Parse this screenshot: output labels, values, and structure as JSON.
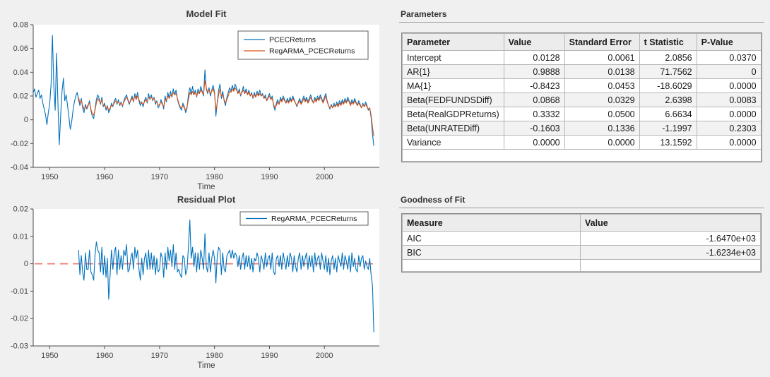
{
  "colors": {
    "background": "#f0f0f0",
    "axes_background": "#ffffff",
    "blue_series": "#0072BD",
    "orange_series": "#D95319",
    "zero_line_red": "#ef7b72",
    "axis_line": "#4a4a4a",
    "tick_text": "#424242",
    "title_text": "#3c3c3c"
  },
  "chart_data": [
    {
      "type": "line",
      "title": "Model Fit",
      "xlabel": "Time",
      "xlim": [
        1947,
        2010
      ],
      "ylim": [
        -0.04,
        0.08
      ],
      "x_tick_values": [
        1950,
        1960,
        1970,
        1980,
        1990,
        2000
      ],
      "x_tick_labels": [
        "1950",
        "1960",
        "1970",
        "1980",
        "1990",
        "2000"
      ],
      "y_tick_values": [
        -0.04,
        -0.02,
        0,
        0.02,
        0.04,
        0.06,
        0.08
      ],
      "y_tick_labels": [
        "-0.04",
        "-0.02",
        "0",
        "0.02",
        "0.04",
        "0.06",
        "0.08"
      ],
      "grid": false,
      "legend_position": "top-right",
      "legend": [
        "PCECReturns",
        "RegARMA_PCECReturns"
      ],
      "series": [
        {
          "name": "PCECReturns",
          "color": "#0072BD",
          "x_start": 1947.0,
          "x_step": 0.25,
          "values": [
            0.023,
            0.026,
            0.019,
            0.022,
            0.025,
            0.018,
            0.021,
            0.014,
            0.009,
            0.004,
            -0.004,
            0.006,
            0.013,
            0.03,
            0.071,
            0.028,
            0.008,
            0.056,
            0.014,
            -0.021,
            0.004,
            0.024,
            0.035,
            0.016,
            0.021,
            0.012,
            0.002,
            -0.008,
            -0.002,
            0.008,
            0.015,
            0.02,
            0.023,
            0.017,
            0.012,
            0.018,
            0.01,
            0.006,
            0.013,
            0.009,
            0.012,
            0.016,
            0.008,
            0.003,
            0.001,
            0.009,
            0.017,
            0.021,
            0.018,
            0.013,
            0.019,
            0.011,
            0.014,
            0.008,
            0.012,
            0.006,
            0.009,
            0.014,
            0.011,
            0.016,
            0.018,
            0.013,
            0.017,
            0.012,
            0.015,
            0.011,
            0.016,
            0.019,
            0.021,
            0.016,
            0.013,
            0.017,
            0.02,
            0.015,
            0.022,
            0.018,
            0.023,
            0.016,
            0.012,
            0.015,
            0.011,
            0.016,
            0.019,
            0.014,
            0.022,
            0.017,
            0.021,
            0.016,
            0.019,
            0.013,
            0.016,
            0.01,
            0.012,
            0.017,
            0.014,
            0.009,
            0.02,
            0.015,
            0.023,
            0.018,
            0.024,
            0.019,
            0.026,
            0.021,
            0.025,
            0.017,
            0.013,
            0.01,
            0.008,
            0.014,
            0.011,
            0.006,
            0.01,
            0.021,
            0.027,
            0.022,
            0.028,
            0.021,
            0.025,
            0.019,
            0.026,
            0.022,
            0.028,
            0.024,
            0.02,
            0.042,
            0.026,
            0.022,
            0.027,
            0.02,
            0.025,
            0.029,
            0.023,
            0.003,
            0.015,
            0.025,
            0.03,
            0.018,
            0.024,
            0.016,
            0.012,
            0.019,
            0.023,
            0.027,
            0.024,
            0.029,
            0.025,
            0.03,
            0.027,
            0.022,
            0.026,
            0.02,
            0.024,
            0.028,
            0.022,
            0.026,
            0.021,
            0.025,
            0.02,
            0.023,
            0.018,
            0.023,
            0.019,
            0.024,
            0.021,
            0.025,
            0.02,
            0.022,
            0.018,
            0.021,
            0.016,
            0.019,
            0.022,
            0.017,
            0.02,
            0.012,
            0.008,
            0.014,
            0.017,
            0.013,
            0.019,
            0.016,
            0.02,
            0.017,
            0.014,
            0.018,
            0.015,
            0.019,
            0.016,
            0.02,
            0.017,
            0.014,
            0.011,
            0.015,
            0.018,
            0.014,
            0.017,
            0.02,
            0.016,
            0.019,
            0.015,
            0.018,
            0.021,
            0.017,
            0.014,
            0.019,
            0.016,
            0.02,
            0.017,
            0.021,
            0.018,
            0.015,
            0.019,
            0.022,
            0.016,
            0.012,
            0.009,
            0.013,
            0.01,
            0.014,
            0.011,
            0.015,
            0.012,
            0.016,
            0.013,
            0.017,
            0.014,
            0.018,
            0.015,
            0.019,
            0.016,
            0.013,
            0.017,
            0.014,
            0.018,
            0.015,
            0.012,
            0.016,
            0.013,
            0.01,
            0.014,
            0.011,
            0.015,
            0.012,
            0.008,
            0.01,
            0.002,
            -0.012,
            -0.022
          ]
        },
        {
          "name": "RegARMA_PCECReturns",
          "color": "#D95319",
          "x_start": 1955.25,
          "x_step": 0.25,
          "values": [
            0.019,
            0.014,
            0.016,
            0.012,
            0.009,
            0.011,
            0.01,
            0.013,
            0.014,
            0.009,
            0.005,
            0.004,
            0.008,
            0.014,
            0.018,
            0.016,
            0.014,
            0.017,
            0.012,
            0.012,
            0.01,
            0.011,
            0.008,
            0.01,
            0.012,
            0.012,
            0.014,
            0.016,
            0.014,
            0.015,
            0.013,
            0.014,
            0.012,
            0.015,
            0.017,
            0.019,
            0.017,
            0.014,
            0.016,
            0.018,
            0.016,
            0.02,
            0.017,
            0.02,
            0.017,
            0.014,
            0.014,
            0.013,
            0.015,
            0.017,
            0.015,
            0.019,
            0.018,
            0.019,
            0.017,
            0.018,
            0.015,
            0.015,
            0.012,
            0.013,
            0.015,
            0.013,
            0.011,
            0.017,
            0.016,
            0.02,
            0.018,
            0.021,
            0.02,
            0.023,
            0.021,
            0.022,
            0.018,
            0.014,
            0.011,
            0.01,
            0.012,
            0.01,
            0.008,
            0.011,
            0.017,
            0.023,
            0.021,
            0.024,
            0.021,
            0.023,
            0.02,
            0.023,
            0.022,
            0.025,
            0.023,
            0.021,
            0.033,
            0.027,
            0.023,
            0.025,
            0.022,
            0.024,
            0.026,
            0.022,
            0.008,
            0.014,
            0.021,
            0.026,
            0.02,
            0.021,
            0.017,
            0.014,
            0.017,
            0.02,
            0.024,
            0.023,
            0.026,
            0.024,
            0.027,
            0.025,
            0.022,
            0.024,
            0.021,
            0.023,
            0.025,
            0.022,
            0.024,
            0.021,
            0.023,
            0.02,
            0.022,
            0.019,
            0.021,
            0.019,
            0.022,
            0.02,
            0.022,
            0.02,
            0.021,
            0.018,
            0.019,
            0.016,
            0.018,
            0.02,
            0.017,
            0.018,
            0.013,
            0.01,
            0.012,
            0.015,
            0.013,
            0.017,
            0.015,
            0.018,
            0.016,
            0.014,
            0.016,
            0.014,
            0.017,
            0.015,
            0.018,
            0.016,
            0.014,
            0.012,
            0.014,
            0.016,
            0.013,
            0.015,
            0.018,
            0.015,
            0.017,
            0.014,
            0.016,
            0.019,
            0.016,
            0.014,
            0.017,
            0.015,
            0.018,
            0.016,
            0.019,
            0.017,
            0.014,
            0.017,
            0.02,
            0.015,
            0.012,
            0.01,
            0.012,
            0.01,
            0.012,
            0.011,
            0.013,
            0.011,
            0.014,
            0.012,
            0.015,
            0.013,
            0.016,
            0.014,
            0.017,
            0.015,
            0.012,
            0.015,
            0.013,
            0.016,
            0.014,
            0.012,
            0.014,
            0.012,
            0.01,
            0.013,
            0.011,
            0.013,
            0.011,
            0.009,
            0.01,
            0.004,
            -0.006,
            -0.014
          ]
        }
      ]
    },
    {
      "type": "line",
      "title": "Residual Plot",
      "xlabel": "Time",
      "xlim": [
        1947,
        2010
      ],
      "ylim": [
        -0.03,
        0.02
      ],
      "x_tick_values": [
        1950,
        1960,
        1970,
        1980,
        1990,
        2000
      ],
      "x_tick_labels": [
        "1950",
        "1960",
        "1970",
        "1980",
        "1990",
        "2000"
      ],
      "y_tick_values": [
        -0.03,
        -0.02,
        -0.01,
        0,
        0.01,
        0.02
      ],
      "y_tick_labels": [
        "-0.03",
        "-0.02",
        "-0.01",
        "0",
        "0.01",
        "0.02"
      ],
      "grid": false,
      "legend_position": "top-right",
      "legend": [
        "RegARMA_PCECReturns"
      ],
      "zero_line": {
        "value": 0,
        "color": "#ef7b72",
        "style": "dashed"
      },
      "series": [
        {
          "name": "RegARMA_PCECReturns",
          "color": "#0072BD",
          "x_start": 1955.25,
          "x_step": 0.25,
          "values": [
            0.005,
            -0.004,
            0.003,
            -0.003,
            -0.006,
            0.004,
            -0.002,
            -0.002,
            0.005,
            -0.003,
            -0.004,
            -0.006,
            0.003,
            0.008,
            0.005,
            0.004,
            -0.003,
            0.006,
            -0.004,
            0.003,
            -0.005,
            0.002,
            -0.013,
            -0.004,
            0.005,
            -0.002,
            0.004,
            0.006,
            -0.004,
            0.005,
            -0.002,
            0.003,
            -0.002,
            0.005,
            0.003,
            0.007,
            -0.003,
            -0.002,
            0.002,
            0.004,
            -0.002,
            0.006,
            0.002,
            0.005,
            -0.002,
            -0.006,
            0.002,
            -0.004,
            0.002,
            0.004,
            -0.002,
            0.005,
            -0.002,
            0.004,
            -0.002,
            0.003,
            -0.004,
            0.002,
            -0.003,
            -0.002,
            0.004,
            0.002,
            -0.005,
            0.004,
            -0.002,
            0.006,
            0.001,
            0.005,
            -0.001,
            0.007,
            -0.002,
            0.004,
            -0.003,
            -0.002,
            -0.004,
            -0.005,
            0.003,
            0.002,
            -0.004,
            -0.002,
            0.006,
            0.016,
            0.002,
            0.006,
            -0.001,
            0.004,
            -0.003,
            0.004,
            -0.002,
            0.005,
            0.002,
            -0.002,
            0.011,
            -0.001,
            -0.003,
            0.004,
            -0.003,
            0.002,
            0.005,
            0.002,
            -0.007,
            0.003,
            0.006,
            0.005,
            -0.004,
            0.004,
            -0.002,
            -0.003,
            0.003,
            0.004,
            0.005,
            0.002,
            0.005,
            0.002,
            0.004,
            0.003,
            -0.001,
            0.003,
            -0.002,
            0.002,
            0.004,
            -0.002,
            0.003,
            -0.001,
            0.003,
            -0.002,
            0.002,
            -0.003,
            0.002,
            0.001,
            0.004,
            0.002,
            -0.003,
            0.003,
            0.001,
            -0.002,
            0.004,
            -0.001,
            0.002,
            0.003,
            -0.002,
            0.004,
            -0.003,
            -0.004,
            0.002,
            0.003,
            -0.001,
            0.003,
            -0.002,
            0.004,
            0.001,
            -0.002,
            0.003,
            -0.001,
            0.004,
            0.002,
            -0.003,
            0.003,
            -0.001,
            -0.003,
            0.002,
            0.004,
            -0.002,
            0.003,
            -0.001,
            0.002,
            0.004,
            -0.002,
            0.003,
            -0.001,
            0.003,
            -0.003,
            0.004,
            -0.001,
            0.002,
            0.003,
            -0.002,
            0.004,
            0.001,
            -0.002,
            0.003,
            -0.003,
            0.002,
            -0.004,
            0.001,
            0.003,
            -0.002,
            0.002,
            -0.003,
            0.003,
            0.001,
            -0.001,
            0.004,
            -0.002,
            0.003,
            0.001,
            -0.002,
            0.003,
            -0.003,
            0.004,
            -0.001,
            0.002,
            -0.002,
            -0.003,
            0.003,
            -0.001,
            0.002,
            0.003,
            -0.002,
            0.001,
            -0.001,
            -0.002,
            0.002,
            -0.004,
            -0.008,
            -0.025
          ]
        }
      ]
    }
  ],
  "tables": {
    "parameters": {
      "heading": "Parameters",
      "columns": [
        "Parameter",
        "Value",
        "Standard Error",
        "t Statistic",
        "P-Value"
      ],
      "rows": [
        [
          "Intercept",
          "0.0128",
          "0.0061",
          "2.0856",
          "0.0370"
        ],
        [
          "AR{1}",
          "0.9888",
          "0.0138",
          "71.7562",
          "0"
        ],
        [
          "MA{1}",
          "-0.8423",
          "0.0453",
          "-18.6029",
          "0.0000"
        ],
        [
          "Beta(FEDFUNDSDiff)",
          "0.0868",
          "0.0329",
          "2.6398",
          "0.0083"
        ],
        [
          "Beta(RealGDPReturns)",
          "0.3332",
          "0.0500",
          "6.6634",
          "0.0000"
        ],
        [
          "Beta(UNRATEDiff)",
          "-0.1603",
          "0.1336",
          "-1.1997",
          "0.2303"
        ],
        [
          "Variance",
          "0.0000",
          "0.0000",
          "13.1592",
          "0.0000"
        ]
      ]
    },
    "goodness_of_fit": {
      "heading": "Goodness of Fit",
      "columns": [
        "Measure",
        "Value"
      ],
      "rows": [
        [
          "AIC",
          "-1.6470e+03"
        ],
        [
          "BIC",
          "-1.6234e+03"
        ]
      ]
    }
  }
}
